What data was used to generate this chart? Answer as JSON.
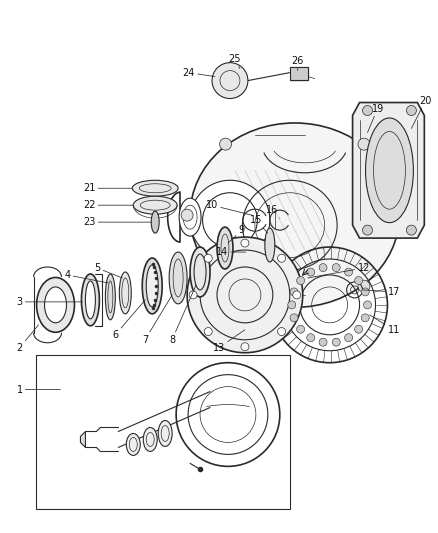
{
  "bg_color": "#ffffff",
  "line_color": "#2a2a2a",
  "label_color": "#111111",
  "label_fontsize": 7.0,
  "fig_width": 4.38,
  "fig_height": 5.33,
  "dpi": 100
}
